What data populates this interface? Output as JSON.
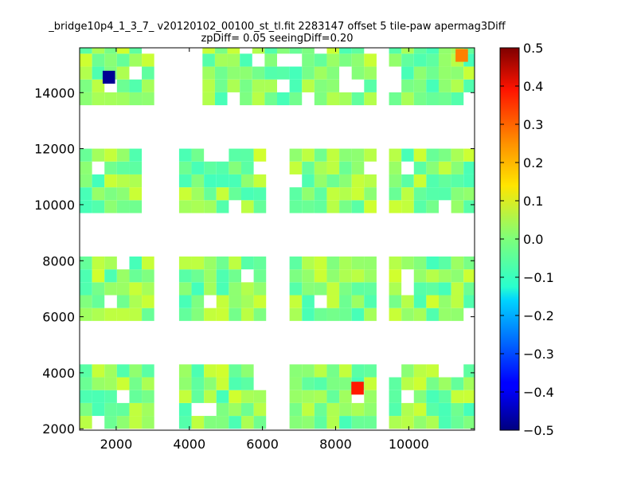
{
  "chart_data": {
    "type": "heatmap",
    "title": "_bridge10p4_1_3_7_ v20120102_00100_st_tl.fit 2283147 offset 5 tile-paw apermag3Diff",
    "subtitle": "zpDiff= 0.05 seeingDiff=0.20",
    "xlim": [
      1000,
      11800
    ],
    "ylim": [
      1950,
      15600
    ],
    "x_ticks": [
      2000,
      4000,
      6000,
      8000,
      10000
    ],
    "y_ticks": [
      2000,
      4000,
      6000,
      8000,
      10000,
      12000,
      14000
    ],
    "x_tick_labels": [
      "2000",
      "4000",
      "6000",
      "8000",
      "10000"
    ],
    "y_tick_labels": [
      "2000",
      "4000",
      "6000",
      "8000",
      "10000",
      "12000",
      "14000"
    ],
    "colorbar": {
      "colormap": "jet",
      "range": [
        -0.5,
        0.5
      ],
      "ticks": [
        0.5,
        0.4,
        0.3,
        0.2,
        0.1,
        0.0,
        -0.1,
        -0.2,
        -0.3,
        -0.4,
        -0.5
      ],
      "tick_labels": [
        "0.5",
        "0.4",
        "0.3",
        "0.2",
        "0.1",
        "0.0",
        "−0.1",
        "−0.2",
        "−0.3",
        "−0.4",
        "−0.5"
      ]
    },
    "grid": false,
    "cell_size": [
      340,
      460
    ],
    "blocks": [
      {
        "x0": 1000,
        "y0": 13550,
        "nx": 6,
        "ny": 5
      },
      {
        "x0": 4360,
        "y0": 13550,
        "nx": 7,
        "ny": 5
      },
      {
        "x0": 6740,
        "y0": 13550,
        "nx": 7,
        "ny": 5
      },
      {
        "x0": 9460,
        "y0": 13550,
        "nx": 7,
        "ny": 5
      },
      {
        "x0": 1000,
        "y0": 9700,
        "nx": 5,
        "ny": 5
      },
      {
        "x0": 3720,
        "y0": 9700,
        "nx": 7,
        "ny": 5
      },
      {
        "x0": 6740,
        "y0": 9700,
        "nx": 7,
        "ny": 5
      },
      {
        "x0": 9460,
        "y0": 9700,
        "nx": 7,
        "ny": 5
      },
      {
        "x0": 1000,
        "y0": 5850,
        "nx": 6,
        "ny": 5
      },
      {
        "x0": 3720,
        "y0": 5850,
        "nx": 7,
        "ny": 5
      },
      {
        "x0": 6740,
        "y0": 5850,
        "nx": 7,
        "ny": 5
      },
      {
        "x0": 9460,
        "y0": 5850,
        "nx": 7,
        "ny": 5
      },
      {
        "x0": 1000,
        "y0": 2000,
        "nx": 6,
        "ny": 5
      },
      {
        "x0": 3720,
        "y0": 2000,
        "nx": 7,
        "ny": 5
      },
      {
        "x0": 6740,
        "y0": 2000,
        "nx": 7,
        "ny": 5
      },
      {
        "x0": 9460,
        "y0": 2000,
        "nx": 7,
        "ny": 5
      }
    ],
    "outliers": [
      {
        "x": 1800,
        "y": 14550,
        "value": -0.48
      },
      {
        "x": 11450,
        "y": 15330,
        "value": 0.25
      },
      {
        "x": 8600,
        "y": 3450,
        "value": 0.35
      }
    ],
    "typical_value_range": [
      -0.06,
      0.08
    ]
  }
}
